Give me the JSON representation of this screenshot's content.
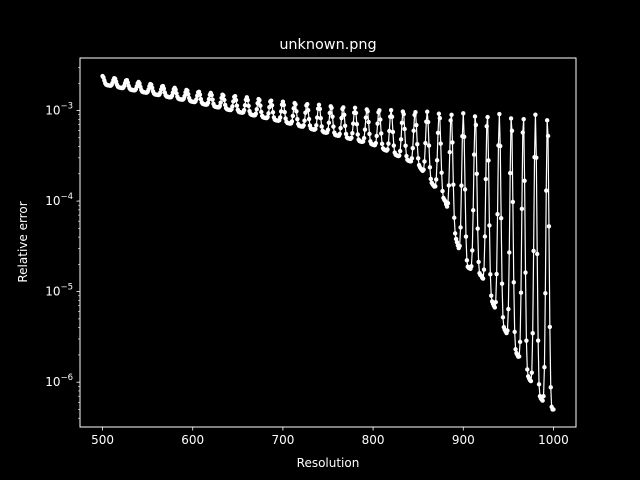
{
  "chart_data": {
    "type": "line",
    "title": "unknown.png",
    "xlabel": "Resolution",
    "ylabel": "Relative error",
    "yscale": "log",
    "xlim": [
      475,
      1025
    ],
    "ylim": [
      3.2e-07,
      0.0038
    ],
    "grid": false,
    "x_ticks": [
      500,
      600,
      700,
      800,
      900,
      1000
    ],
    "y_ticks": [
      {
        "value": 1e-06,
        "base": "10",
        "exp": "−6"
      },
      {
        "value": 1e-05,
        "base": "10",
        "exp": "−5"
      },
      {
        "value": 0.0001,
        "base": "10",
        "exp": "−4"
      },
      {
        "value": 0.001,
        "base": "10",
        "exp": "−3"
      }
    ],
    "series": [
      {
        "style": {
          "color": "#ffffff",
          "marker": "circle"
        },
        "x_start": 500,
        "x_end": 1000,
        "x_step": 1,
        "upper_envelope": [
          [
            500,
            0.0024
          ],
          [
            600,
            0.00165
          ],
          [
            700,
            0.00125
          ],
          [
            800,
            0.00103
          ],
          [
            900,
            0.00093
          ],
          [
            1000,
            0.00089
          ]
        ],
        "lower_envelope": [
          [
            500,
            0.00195
          ],
          [
            600,
            0.00125
          ],
          [
            700,
            0.00075
          ],
          [
            800,
            0.00042
          ],
          [
            850,
            0.00025
          ],
          [
            880,
            0.0001
          ],
          [
            900,
            2e-05
          ],
          [
            920,
            1.5e-05
          ],
          [
            940,
            5e-06
          ],
          [
            960,
            2e-06
          ],
          [
            980,
            8e-07
          ],
          [
            995,
            5e-07
          ],
          [
            1000,
            5e-07
          ]
        ]
      }
    ]
  }
}
